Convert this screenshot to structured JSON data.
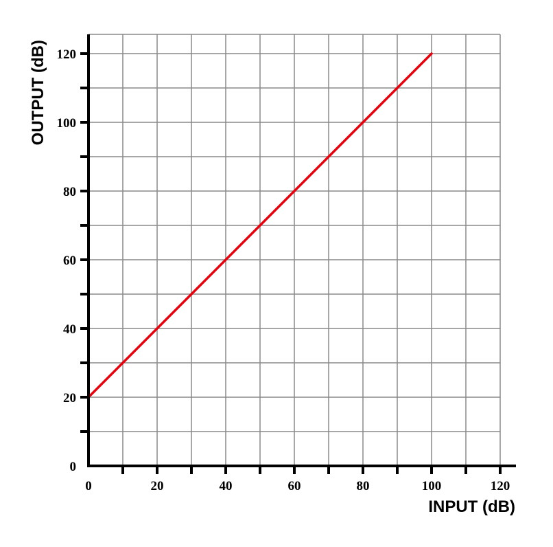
{
  "chart_data": {
    "type": "line",
    "title": "",
    "xlabel": "INPUT (dB)",
    "ylabel": "OUTPUT (dB)",
    "xlim": [
      0,
      120
    ],
    "ylim": [
      0,
      125
    ],
    "x_ticks": [
      0,
      20,
      40,
      60,
      80,
      100,
      120
    ],
    "y_ticks": [
      0,
      20,
      40,
      60,
      80,
      100,
      120
    ],
    "grid": true,
    "grid_step": 10,
    "series": [
      {
        "color": "#e8000b",
        "points": [
          {
            "x": 0,
            "y": 20
          },
          {
            "x": 100,
            "y": 120
          }
        ]
      }
    ]
  }
}
